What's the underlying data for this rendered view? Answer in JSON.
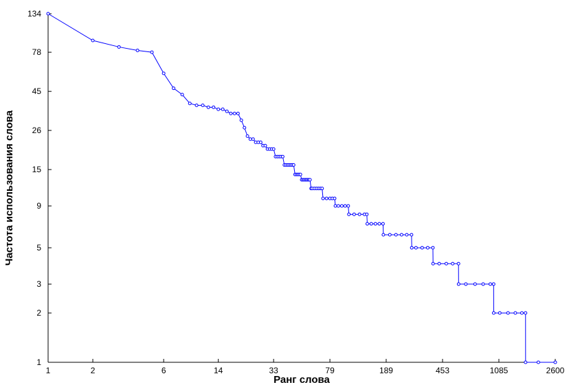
{
  "chart_data": {
    "type": "line",
    "title": "",
    "xlabel": "Ранг слова",
    "ylabel": "Частота использования слова",
    "x_scale": "log",
    "y_scale": "log",
    "xlim": [
      1,
      2600
    ],
    "ylim": [
      1,
      134
    ],
    "x_ticks": [
      "1",
      "2",
      "6",
      "14",
      "33",
      "79",
      "189",
      "453",
      "1085",
      "2600"
    ],
    "y_ticks": [
      "1",
      "2",
      "3",
      "5",
      "9",
      "15",
      "26",
      "45",
      "78",
      "134"
    ],
    "x_tick_values": [
      1,
      2,
      6,
      14,
      33,
      79,
      189,
      453,
      1085,
      2600
    ],
    "y_tick_values": [
      1,
      2,
      3,
      5,
      9,
      15,
      26,
      45,
      78,
      134
    ],
    "grid": false,
    "series": [
      {
        "color": "#0000ff",
        "marker": "circle",
        "points": [
          [
            1,
            134
          ],
          [
            2,
            92
          ],
          [
            3,
            84
          ],
          [
            4,
            80
          ],
          [
            5,
            78
          ],
          [
            6,
            58
          ],
          [
            7,
            47
          ],
          [
            8,
            43
          ],
          [
            9,
            38
          ],
          [
            10,
            37
          ],
          [
            11,
            37
          ],
          [
            12,
            36
          ],
          [
            13,
            36
          ],
          [
            14,
            35
          ],
          [
            15,
            35
          ],
          [
            16,
            34
          ],
          [
            17,
            33
          ],
          [
            18,
            33
          ],
          [
            19,
            33
          ],
          [
            20,
            30
          ],
          [
            21,
            27
          ],
          [
            22,
            24
          ],
          [
            23,
            23
          ],
          [
            24,
            23
          ],
          [
            25,
            22
          ],
          [
            26,
            22
          ],
          [
            27,
            22
          ],
          [
            28,
            21
          ],
          [
            29,
            21
          ],
          [
            30,
            20
          ],
          [
            31,
            20
          ],
          [
            32,
            20
          ],
          [
            33,
            20
          ],
          [
            34,
            18
          ],
          [
            35,
            18
          ],
          [
            36,
            18
          ],
          [
            37,
            18
          ],
          [
            38,
            18
          ],
          [
            39,
            16
          ],
          [
            40,
            16
          ],
          [
            41,
            16
          ],
          [
            42,
            16
          ],
          [
            43,
            16
          ],
          [
            44,
            16
          ],
          [
            45,
            16
          ],
          [
            46,
            14
          ],
          [
            47,
            14
          ],
          [
            48,
            14
          ],
          [
            49,
            14
          ],
          [
            50,
            14
          ],
          [
            51,
            13
          ],
          [
            52,
            13
          ],
          [
            53,
            13
          ],
          [
            54,
            13
          ],
          [
            55,
            13
          ],
          [
            56,
            13
          ],
          [
            57,
            13
          ],
          [
            58,
            13
          ],
          [
            59,
            11.5
          ],
          [
            60,
            11.5
          ],
          [
            62,
            11.5
          ],
          [
            64,
            11.5
          ],
          [
            66,
            11.5
          ],
          [
            68,
            11.5
          ],
          [
            70,
            11.5
          ],
          [
            71,
            10
          ],
          [
            75,
            10
          ],
          [
            79,
            10
          ],
          [
            82,
            10
          ],
          [
            85,
            10
          ],
          [
            86,
            9
          ],
          [
            90,
            9
          ],
          [
            95,
            9
          ],
          [
            100,
            9
          ],
          [
            105,
            9
          ],
          [
            106,
            8
          ],
          [
            115,
            8
          ],
          [
            125,
            8
          ],
          [
            135,
            8
          ],
          [
            140,
            8
          ],
          [
            141,
            7
          ],
          [
            150,
            7
          ],
          [
            160,
            7
          ],
          [
            170,
            7
          ],
          [
            180,
            7
          ],
          [
            181,
            6
          ],
          [
            200,
            6
          ],
          [
            220,
            6
          ],
          [
            240,
            6
          ],
          [
            260,
            6
          ],
          [
            280,
            6
          ],
          [
            281,
            5
          ],
          [
            300,
            5
          ],
          [
            330,
            5
          ],
          [
            360,
            5
          ],
          [
            390,
            5
          ],
          [
            391,
            4
          ],
          [
            430,
            4
          ],
          [
            480,
            4
          ],
          [
            530,
            4
          ],
          [
            580,
            4
          ],
          [
            581,
            3
          ],
          [
            650,
            3
          ],
          [
            750,
            3
          ],
          [
            850,
            3
          ],
          [
            950,
            3
          ],
          [
            1000,
            3
          ],
          [
            1001,
            2
          ],
          [
            1100,
            2
          ],
          [
            1250,
            2
          ],
          [
            1400,
            2
          ],
          [
            1550,
            2
          ],
          [
            1640,
            2
          ],
          [
            1641,
            1
          ],
          [
            2000,
            1
          ],
          [
            2600,
            1
          ]
        ]
      }
    ]
  }
}
